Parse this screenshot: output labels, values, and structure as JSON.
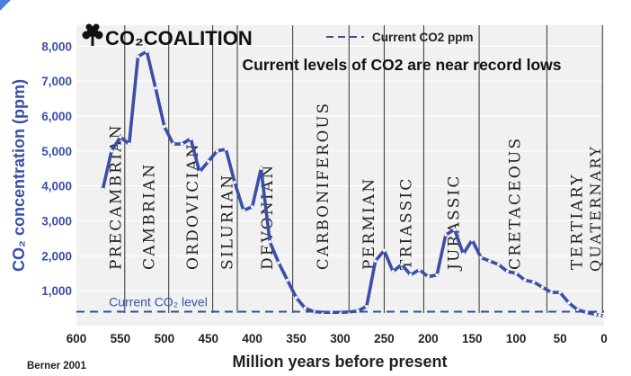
{
  "logo": {
    "text": "CO₂COALITION",
    "icon": "tree-icon"
  },
  "chart_data": {
    "type": "line",
    "title": "Current levels of CO2 are near record lows",
    "xlabel": "Million years before present",
    "ylabel": "CO₂ concentration (ppm)",
    "xlim": [
      600,
      0
    ],
    "ylim": [
      0,
      8600
    ],
    "x_ticks": [
      600,
      550,
      500,
      450,
      400,
      350,
      300,
      250,
      200,
      150,
      100,
      50,
      0
    ],
    "y_ticks": [
      1000,
      2000,
      3000,
      4000,
      5000,
      6000,
      7000,
      8000
    ],
    "y_tick_labels": [
      "1,000",
      "2,000",
      "3,000",
      "4,000",
      "5,000",
      "6,000",
      "7,000",
      "8,000"
    ],
    "grid": "vertical period boundaries",
    "series": [
      {
        "name": "",
        "color": "#3a4fa8",
        "x": [
          570,
          560,
          550,
          540,
          530,
          520,
          510,
          500,
          490,
          480,
          470,
          460,
          450,
          440,
          430,
          420,
          410,
          400,
          390,
          380,
          370,
          360,
          350,
          340,
          330,
          320,
          310,
          300,
          290,
          280,
          270,
          260,
          250,
          240,
          230,
          220,
          210,
          200,
          190,
          180,
          170,
          160,
          150,
          140,
          130,
          120,
          110,
          100,
          90,
          80,
          70,
          60,
          50,
          40,
          30,
          20,
          10,
          5,
          0
        ],
        "values": [
          3900,
          5000,
          5400,
          5200,
          7700,
          7850,
          6800,
          5700,
          5200,
          5200,
          5350,
          4400,
          4700,
          5000,
          5050,
          4100,
          3300,
          3400,
          4500,
          2400,
          1800,
          1300,
          800,
          500,
          400,
          380,
          380,
          380,
          390,
          420,
          550,
          1850,
          2150,
          1550,
          1750,
          1450,
          1600,
          1400,
          1450,
          2600,
          2750,
          2050,
          2450,
          1950,
          1850,
          1750,
          1550,
          1500,
          1300,
          1250,
          1100,
          950,
          950,
          650,
          450,
          380,
          320,
          300,
          280
        ]
      },
      {
        "name": "Current CO2 ppm",
        "style": "dashed",
        "color": "#2f4f9f",
        "value": 400
      }
    ],
    "periods": [
      {
        "name": "PRECAMBRIAN",
        "start": 570,
        "end": 545
      },
      {
        "name": "CAMBRIAN",
        "start": 545,
        "end": 495
      },
      {
        "name": "ORDOVICIAN",
        "start": 495,
        "end": 445
      },
      {
        "name": "SILURIAN",
        "start": 445,
        "end": 417
      },
      {
        "name": "DEVONIAN",
        "start": 417,
        "end": 354
      },
      {
        "name": "CARBONIFEROUS",
        "start": 354,
        "end": 290
      },
      {
        "name": "PERMIAN",
        "start": 290,
        "end": 250
      },
      {
        "name": "TRIASSIC",
        "start": 250,
        "end": 205
      },
      {
        "name": "JURASSIC",
        "start": 205,
        "end": 142
      },
      {
        "name": "CRETACEOUS",
        "start": 142,
        "end": 65
      },
      {
        "name": "TERTIARY",
        "start": 65,
        "end": 1.8
      },
      {
        "name": "QUATERNARY",
        "start": 1.8,
        "end": 0
      }
    ],
    "boundaries": [
      545,
      495,
      445,
      417,
      354,
      290,
      250,
      205,
      142,
      65,
      1.8
    ],
    "annotations": [
      {
        "text": "Current CO₂ level",
        "x": 560,
        "y": 400
      }
    ],
    "legend": {
      "position": "top-right"
    },
    "source": "Berner 2001"
  }
}
